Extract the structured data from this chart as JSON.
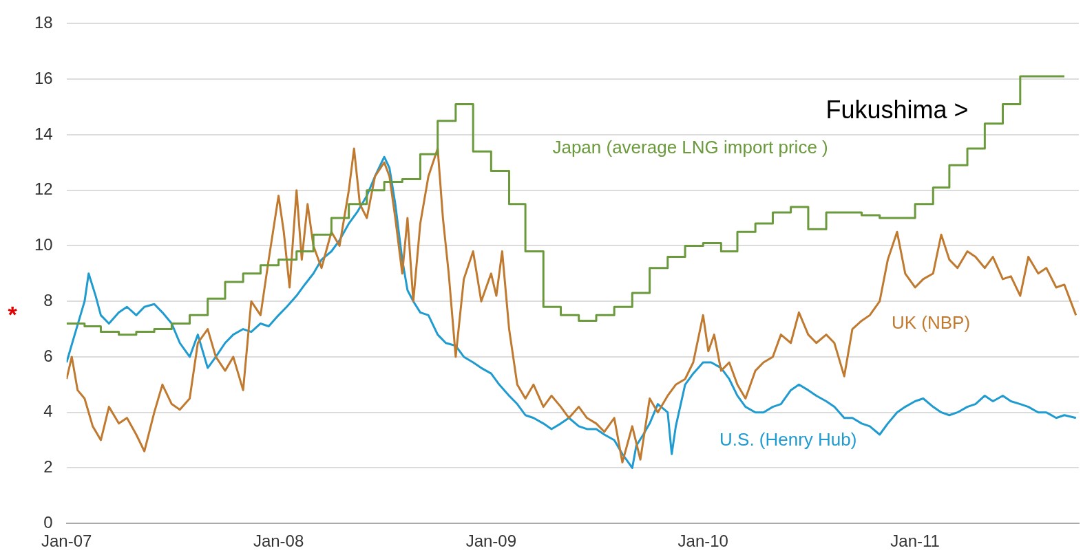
{
  "chart_data": {
    "type": "line",
    "xlim": [
      "2007-01-01",
      "2011-10-10"
    ],
    "xticks": [
      {
        "value": "2007-01-01",
        "label": "Jan-07"
      },
      {
        "value": "2008-01-01",
        "label": "Jan-08"
      },
      {
        "value": "2009-01-01",
        "label": "Jan-09"
      },
      {
        "value": "2010-01-01",
        "label": "Jan-10"
      },
      {
        "value": "2011-01-01",
        "label": "Jan-11"
      }
    ],
    "ylim": [
      0,
      18
    ],
    "yticks": [
      0,
      2,
      4,
      6,
      8,
      10,
      12,
      14,
      16,
      18
    ],
    "grid": "y",
    "legend": false,
    "marker": "none",
    "line_style": "solid",
    "annotations": [
      "Fukushima >",
      "*"
    ],
    "series": [
      {
        "name": "Japan (average LNG import price )",
        "type": "step",
        "color": "#6a9a3c",
        "x": [
          "2007-01-01",
          "2007-02-01",
          "2007-03-01",
          "2007-04-01",
          "2007-05-01",
          "2007-06-01",
          "2007-07-01",
          "2007-08-01",
          "2007-09-01",
          "2007-10-01",
          "2007-11-01",
          "2007-12-01",
          "2008-01-01",
          "2008-02-01",
          "2008-03-01",
          "2008-04-01",
          "2008-05-01",
          "2008-06-01",
          "2008-07-01",
          "2008-08-01",
          "2008-09-01",
          "2008-10-01",
          "2008-11-01",
          "2008-12-01",
          "2009-01-01",
          "2009-02-01",
          "2009-03-01",
          "2009-04-01",
          "2009-05-01",
          "2009-06-01",
          "2009-07-01",
          "2009-08-01",
          "2009-09-01",
          "2009-10-01",
          "2009-11-01",
          "2009-12-01",
          "2010-01-01",
          "2010-02-01",
          "2010-03-01",
          "2010-04-01",
          "2010-05-01",
          "2010-06-01",
          "2010-07-01",
          "2010-08-01",
          "2010-09-01",
          "2010-10-01",
          "2010-11-01",
          "2010-12-01",
          "2011-01-01",
          "2011-02-01",
          "2011-03-01",
          "2011-04-01",
          "2011-05-01",
          "2011-06-01",
          "2011-07-01",
          "2011-08-01",
          "2011-09-01",
          "2011-09-15"
        ],
        "values": [
          7.2,
          7.2,
          7.1,
          6.9,
          6.8,
          6.9,
          7.0,
          7.2,
          7.5,
          8.1,
          8.7,
          9.0,
          9.3,
          9.5,
          9.8,
          10.4,
          11.0,
          11.5,
          12.0,
          12.3,
          12.4,
          13.3,
          14.5,
          15.1,
          13.4,
          12.7,
          11.5,
          9.8,
          7.8,
          7.5,
          7.3,
          7.5,
          7.8,
          8.3,
          9.2,
          9.6,
          10.0,
          10.1,
          9.8,
          10.5,
          10.8,
          11.2,
          11.4,
          10.6,
          11.2,
          11.2,
          11.1,
          11.0,
          11.0,
          11.5,
          12.1,
          12.9,
          13.5,
          14.4,
          15.1,
          16.1,
          16.1,
          16.1
        ]
      },
      {
        "name": "UK (NBP)",
        "color": "#c07a30",
        "x": [
          "2007-01-01",
          "2007-01-10",
          "2007-01-20",
          "2007-02-01",
          "2007-02-15",
          "2007-03-01",
          "2007-03-15",
          "2007-04-01",
          "2007-04-15",
          "2007-05-01",
          "2007-05-15",
          "2007-06-01",
          "2007-06-15",
          "2007-07-01",
          "2007-07-15",
          "2007-08-01",
          "2007-08-15",
          "2007-09-01",
          "2007-09-15",
          "2007-10-01",
          "2007-10-15",
          "2007-11-01",
          "2007-11-15",
          "2007-12-01",
          "2007-12-15",
          "2008-01-01",
          "2008-01-10",
          "2008-01-20",
          "2008-02-01",
          "2008-02-10",
          "2008-02-20",
          "2008-03-01",
          "2008-03-15",
          "2008-04-01",
          "2008-04-15",
          "2008-05-01",
          "2008-05-10",
          "2008-05-20",
          "2008-06-01",
          "2008-06-15",
          "2008-07-01",
          "2008-07-10",
          "2008-07-20",
          "2008-08-01",
          "2008-08-10",
          "2008-08-20",
          "2008-09-01",
          "2008-09-15",
          "2008-10-01",
          "2008-10-10",
          "2008-10-20",
          "2008-11-01",
          "2008-11-15",
          "2008-12-01",
          "2008-12-15",
          "2009-01-01",
          "2009-01-10",
          "2009-01-20",
          "2009-02-01",
          "2009-02-15",
          "2009-03-01",
          "2009-03-15",
          "2009-04-01",
          "2009-04-15",
          "2009-05-01",
          "2009-05-15",
          "2009-06-01",
          "2009-06-15",
          "2009-07-01",
          "2009-07-15",
          "2009-08-01",
          "2009-08-15",
          "2009-09-01",
          "2009-09-15",
          "2009-10-01",
          "2009-10-15",
          "2009-11-01",
          "2009-11-15",
          "2009-12-01",
          "2009-12-15",
          "2010-01-01",
          "2010-01-10",
          "2010-01-20",
          "2010-02-01",
          "2010-02-15",
          "2010-03-01",
          "2010-03-15",
          "2010-04-01",
          "2010-04-15",
          "2010-05-01",
          "2010-05-15",
          "2010-06-01",
          "2010-06-15",
          "2010-07-01",
          "2010-07-15",
          "2010-08-01",
          "2010-08-15",
          "2010-09-01",
          "2010-09-15",
          "2010-10-01",
          "2010-10-15",
          "2010-11-01",
          "2010-11-15",
          "2010-12-01",
          "2010-12-15",
          "2011-01-01",
          "2011-01-15",
          "2011-02-01",
          "2011-02-15",
          "2011-03-01",
          "2011-03-15",
          "2011-04-01",
          "2011-04-15",
          "2011-05-01",
          "2011-05-15",
          "2011-06-01",
          "2011-06-15",
          "2011-07-01",
          "2011-07-15",
          "2011-08-01",
          "2011-08-15",
          "2011-09-01",
          "2011-09-15",
          "2011-10-05"
        ],
        "values": [
          5.2,
          6.0,
          4.8,
          4.5,
          3.5,
          3.0,
          4.2,
          3.6,
          3.8,
          3.2,
          2.6,
          4.0,
          5.0,
          4.3,
          4.1,
          4.5,
          6.5,
          7.0,
          6.0,
          5.5,
          6.0,
          4.8,
          8.0,
          7.5,
          9.5,
          11.8,
          10.5,
          8.5,
          12.0,
          9.5,
          11.5,
          10.0,
          9.2,
          10.5,
          10.0,
          12.0,
          13.5,
          11.5,
          11.0,
          12.5,
          13.0,
          12.5,
          11.0,
          9.0,
          11.0,
          8.0,
          10.8,
          12.5,
          13.5,
          11.0,
          9.0,
          6.0,
          8.8,
          9.8,
          8.0,
          9.0,
          8.2,
          9.8,
          7.0,
          5.0,
          4.5,
          5.0,
          4.2,
          4.6,
          4.2,
          3.8,
          4.2,
          3.8,
          3.6,
          3.3,
          3.8,
          2.2,
          3.5,
          2.3,
          4.5,
          4.0,
          4.6,
          5.0,
          5.2,
          5.8,
          7.5,
          6.2,
          6.8,
          5.5,
          5.8,
          5.0,
          4.5,
          5.5,
          5.8,
          6.0,
          6.8,
          6.5,
          7.6,
          6.8,
          6.5,
          6.8,
          6.5,
          5.3,
          7.0,
          7.3,
          7.5,
          8.0,
          9.5,
          10.5,
          9.0,
          8.5,
          8.8,
          9.0,
          10.4,
          9.5,
          9.2,
          9.8,
          9.6,
          9.2,
          9.6,
          8.8,
          8.9,
          8.2,
          9.6,
          9.0,
          9.2,
          8.5,
          8.6,
          7.5
        ]
      },
      {
        "name": "U.S. (Henry Hub)",
        "color": "#1f9bd0",
        "x": [
          "2007-01-01",
          "2007-01-15",
          "2007-02-01",
          "2007-02-08",
          "2007-02-20",
          "2007-03-01",
          "2007-03-15",
          "2007-04-01",
          "2007-04-15",
          "2007-05-01",
          "2007-05-15",
          "2007-06-01",
          "2007-06-15",
          "2007-07-01",
          "2007-07-15",
          "2007-08-01",
          "2007-08-15",
          "2007-09-01",
          "2007-09-15",
          "2007-10-01",
          "2007-10-15",
          "2007-11-01",
          "2007-11-15",
          "2007-12-01",
          "2007-12-15",
          "2008-01-01",
          "2008-01-15",
          "2008-02-01",
          "2008-02-15",
          "2008-03-01",
          "2008-03-15",
          "2008-04-01",
          "2008-04-15",
          "2008-05-01",
          "2008-05-15",
          "2008-06-01",
          "2008-06-15",
          "2008-07-01",
          "2008-07-10",
          "2008-07-20",
          "2008-08-01",
          "2008-08-10",
          "2008-08-20",
          "2008-09-01",
          "2008-09-15",
          "2008-10-01",
          "2008-10-15",
          "2008-11-01",
          "2008-11-15",
          "2008-12-01",
          "2008-12-15",
          "2009-01-01",
          "2009-01-15",
          "2009-02-01",
          "2009-02-15",
          "2009-03-01",
          "2009-03-15",
          "2009-04-01",
          "2009-04-15",
          "2009-05-01",
          "2009-05-15",
          "2009-06-01",
          "2009-06-15",
          "2009-07-01",
          "2009-07-15",
          "2009-08-01",
          "2009-08-15",
          "2009-09-01",
          "2009-09-08",
          "2009-09-20",
          "2009-10-01",
          "2009-10-15",
          "2009-11-01",
          "2009-11-08",
          "2009-11-15",
          "2009-12-01",
          "2009-12-15",
          "2010-01-01",
          "2010-01-15",
          "2010-02-01",
          "2010-02-15",
          "2010-03-01",
          "2010-03-15",
          "2010-04-01",
          "2010-04-15",
          "2010-05-01",
          "2010-05-15",
          "2010-06-01",
          "2010-06-15",
          "2010-07-01",
          "2010-07-15",
          "2010-08-01",
          "2010-08-15",
          "2010-09-01",
          "2010-09-15",
          "2010-10-01",
          "2010-10-15",
          "2010-11-01",
          "2010-11-15",
          "2010-12-01",
          "2010-12-15",
          "2011-01-01",
          "2011-01-15",
          "2011-02-01",
          "2011-02-15",
          "2011-03-01",
          "2011-03-15",
          "2011-04-01",
          "2011-04-15",
          "2011-05-01",
          "2011-05-15",
          "2011-06-01",
          "2011-06-15",
          "2011-07-01",
          "2011-07-15",
          "2011-08-01",
          "2011-08-15",
          "2011-09-01",
          "2011-09-15",
          "2011-10-05"
        ],
        "values": [
          5.8,
          6.8,
          8.0,
          9.0,
          8.2,
          7.5,
          7.2,
          7.6,
          7.8,
          7.5,
          7.8,
          7.9,
          7.6,
          7.2,
          6.5,
          6.0,
          6.8,
          5.6,
          6.0,
          6.5,
          6.8,
          7.0,
          6.9,
          7.2,
          7.1,
          7.5,
          7.8,
          8.2,
          8.6,
          9.0,
          9.5,
          9.8,
          10.2,
          10.8,
          11.2,
          11.8,
          12.5,
          13.2,
          12.8,
          11.5,
          9.5,
          8.4,
          8.0,
          7.6,
          7.5,
          6.8,
          6.5,
          6.4,
          6.0,
          5.8,
          5.6,
          5.4,
          5.0,
          4.6,
          4.3,
          3.9,
          3.8,
          3.6,
          3.4,
          3.6,
          3.8,
          3.5,
          3.4,
          3.4,
          3.2,
          3.0,
          2.5,
          2.0,
          2.8,
          3.2,
          3.6,
          4.3,
          4.0,
          2.5,
          3.5,
          5.0,
          5.4,
          5.8,
          5.8,
          5.6,
          5.2,
          4.6,
          4.2,
          4.0,
          4.0,
          4.2,
          4.3,
          4.8,
          5.0,
          4.8,
          4.6,
          4.4,
          4.2,
          3.8,
          3.8,
          3.6,
          3.5,
          3.2,
          3.6,
          4.0,
          4.2,
          4.4,
          4.5,
          4.2,
          4.0,
          3.9,
          4.0,
          4.2,
          4.3,
          4.6,
          4.4,
          4.6,
          4.4,
          4.3,
          4.2,
          4.0,
          4.0,
          3.8,
          3.9,
          3.8
        ]
      }
    ]
  }
}
